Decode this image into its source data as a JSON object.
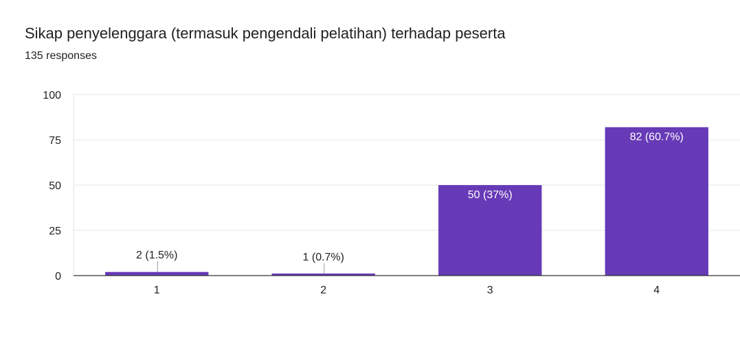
{
  "title": "Sikap penyelenggara (termasuk pengendali pelatihan) terhadap peserta",
  "subtitle": "135 responses",
  "colors": {
    "bar": "#673ab7",
    "grid": "#e6e6e6",
    "axis": "#333333",
    "label_outside": "#222222",
    "label_inside": "#ffffff",
    "text": "#202124"
  },
  "chart_data": {
    "type": "bar",
    "categories": [
      "1",
      "2",
      "3",
      "4"
    ],
    "values": [
      2,
      1,
      50,
      82
    ],
    "data_labels": [
      "2 (1.5%)",
      "1 (0.7%)",
      "50 (37%)",
      "82 (60.7%)"
    ],
    "y_ticks": [
      "0",
      "25",
      "50",
      "75",
      "100"
    ],
    "ylim": [
      0,
      100
    ],
    "title": "Sikap penyelenggara (termasuk pengendali pelatihan) terhadap peserta",
    "xlabel": "",
    "ylabel": "",
    "grid": true,
    "legend": "none"
  }
}
